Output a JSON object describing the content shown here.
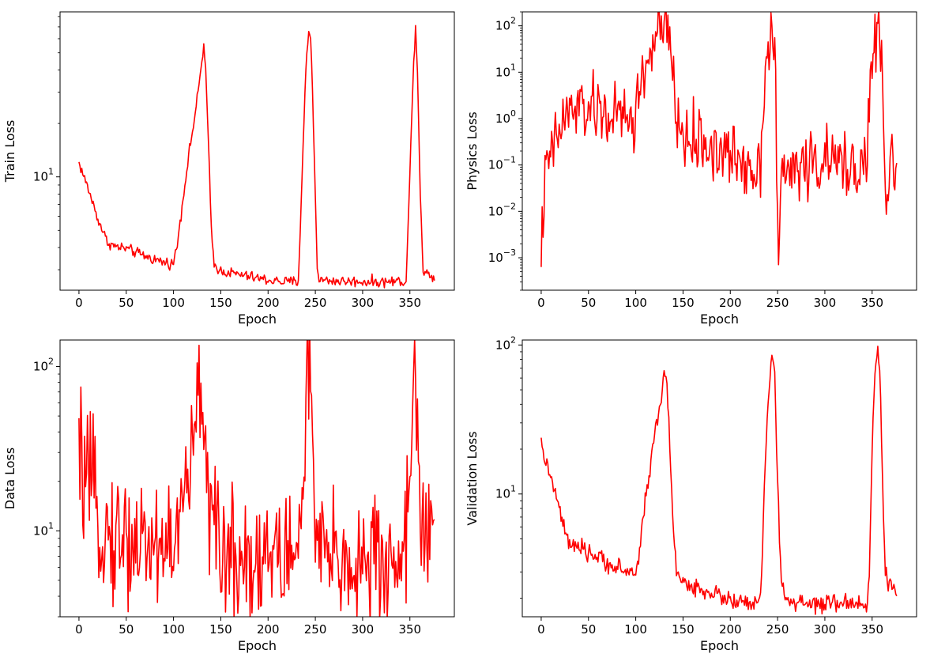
{
  "chart_data": [
    {
      "type": "line",
      "ylabel": "Train Loss",
      "xlabel": "Epoch",
      "yscale": "log",
      "xlim": [
        -20,
        397
      ],
      "ylim": [
        2.3,
        85
      ],
      "grid": false,
      "color": "#ff0000",
      "xticks": [
        0,
        50,
        100,
        150,
        200,
        250,
        300,
        350
      ],
      "yticks": [
        {
          "value": 10,
          "base": "10",
          "exp": "1"
        }
      ],
      "noise": 0.015,
      "keypoints": [
        [
          0,
          12
        ],
        [
          10,
          8.5
        ],
        [
          20,
          5.8
        ],
        [
          30,
          4.3
        ],
        [
          38,
          4.05
        ],
        [
          50,
          3.95
        ],
        [
          60,
          3.75
        ],
        [
          75,
          3.5
        ],
        [
          90,
          3.3
        ],
        [
          100,
          3.25
        ],
        [
          104,
          4.2
        ],
        [
          110,
          7.5
        ],
        [
          115,
          12
        ],
        [
          120,
          18
        ],
        [
          125,
          27
        ],
        [
          130,
          45
        ],
        [
          132,
          55
        ],
        [
          134,
          40
        ],
        [
          137,
          15
        ],
        [
          140,
          5
        ],
        [
          143,
          3.2
        ],
        [
          150,
          2.95
        ],
        [
          175,
          2.78
        ],
        [
          200,
          2.62
        ],
        [
          220,
          2.56
        ],
        [
          232,
          2.58
        ],
        [
          234,
          5
        ],
        [
          237,
          15
        ],
        [
          240,
          40
        ],
        [
          243,
          66
        ],
        [
          245,
          63
        ],
        [
          247,
          30
        ],
        [
          250,
          8
        ],
        [
          252,
          3
        ],
        [
          255,
          2.62
        ],
        [
          280,
          2.58
        ],
        [
          320,
          2.56
        ],
        [
          346,
          2.6
        ],
        [
          348,
          5
        ],
        [
          351,
          15
        ],
        [
          354,
          45
        ],
        [
          356,
          72
        ],
        [
          358,
          40
        ],
        [
          361,
          8
        ],
        [
          364,
          3
        ],
        [
          370,
          2.8
        ],
        [
          376,
          2.7
        ]
      ]
    },
    {
      "type": "line",
      "ylabel": "Physics Loss",
      "xlabel": "Epoch",
      "yscale": "log",
      "xlim": [
        -20,
        397
      ],
      "ylim": [
        0.0002,
        200
      ],
      "grid": false,
      "color": "#ff0000",
      "xticks": [
        0,
        50,
        100,
        150,
        200,
        250,
        300,
        350
      ],
      "yticks": [
        {
          "value": 0.001,
          "base": "10",
          "exp": "−3"
        },
        {
          "value": 0.01,
          "base": "10",
          "exp": "−2"
        },
        {
          "value": 0.1,
          "base": "10",
          "exp": "−1"
        },
        {
          "value": 1,
          "base": "10",
          "exp": "0"
        },
        {
          "value": 10,
          "base": "10",
          "exp": "1"
        },
        {
          "value": 100,
          "base": "10",
          "exp": "2"
        }
      ],
      "noise": 0.35,
      "keypoints": [
        [
          0,
          0.0016
        ],
        [
          2,
          0.01
        ],
        [
          5,
          0.06
        ],
        [
          8,
          0.12
        ],
        [
          12,
          0.2
        ],
        [
          16,
          0.35
        ],
        [
          20,
          0.6
        ],
        [
          25,
          1.0
        ],
        [
          30,
          1.4
        ],
        [
          40,
          1.6
        ],
        [
          50,
          1.6
        ],
        [
          60,
          1.4
        ],
        [
          70,
          1.2
        ],
        [
          80,
          1.1
        ],
        [
          90,
          1.0
        ],
        [
          98,
          0.8
        ],
        [
          100,
          1.5
        ],
        [
          105,
          5
        ],
        [
          110,
          12
        ],
        [
          115,
          25
        ],
        [
          120,
          50
        ],
        [
          125,
          75
        ],
        [
          130,
          90
        ],
        [
          135,
          40
        ],
        [
          140,
          8
        ],
        [
          143,
          1.0
        ],
        [
          147,
          0.5
        ],
        [
          155,
          0.35
        ],
        [
          170,
          0.3
        ],
        [
          185,
          0.2
        ],
        [
          200,
          0.15
        ],
        [
          215,
          0.12
        ],
        [
          228,
          0.08
        ],
        [
          232,
          0.1
        ],
        [
          234,
          2
        ],
        [
          237,
          10
        ],
        [
          240,
          40
        ],
        [
          243,
          80
        ],
        [
          246,
          50
        ],
        [
          248,
          5
        ],
        [
          249,
          0.1
        ],
        [
          250,
          0.01
        ],
        [
          251,
          0.00025
        ],
        [
          252,
          0.005
        ],
        [
          254,
          0.04
        ],
        [
          260,
          0.08
        ],
        [
          280,
          0.1
        ],
        [
          300,
          0.12
        ],
        [
          320,
          0.1
        ],
        [
          340,
          0.1
        ],
        [
          345,
          0.15
        ],
        [
          347,
          2
        ],
        [
          350,
          20
        ],
        [
          354,
          50
        ],
        [
          357,
          60
        ],
        [
          360,
          20
        ],
        [
          362,
          1
        ],
        [
          364,
          0.02
        ],
        [
          365,
          0.005
        ],
        [
          368,
          0.05
        ],
        [
          370,
          0.2
        ],
        [
          373,
          0.1
        ],
        [
          376,
          0.12
        ]
      ]
    },
    {
      "type": "line",
      "ylabel": "Data Loss",
      "xlabel": "Epoch",
      "yscale": "log",
      "xlim": [
        -20,
        397
      ],
      "ylim": [
        3.0,
        145
      ],
      "grid": false,
      "color": "#ff0000",
      "xticks": [
        0,
        50,
        100,
        150,
        200,
        250,
        300,
        350
      ],
      "yticks": [
        {
          "value": 10,
          "base": "10",
          "exp": "1"
        },
        {
          "value": 100,
          "base": "10",
          "exp": "2"
        }
      ],
      "noise": 0.2,
      "keypoints": [
        [
          0,
          26
        ],
        [
          5,
          22
        ],
        [
          10,
          18
        ],
        [
          20,
          13
        ],
        [
          30,
          9.5
        ],
        [
          50,
          8.8
        ],
        [
          70,
          8.5
        ],
        [
          90,
          8.3
        ],
        [
          105,
          9
        ],
        [
          110,
          15
        ],
        [
          115,
          22
        ],
        [
          120,
          28
        ],
        [
          125,
          50
        ],
        [
          128,
          70
        ],
        [
          130,
          70
        ],
        [
          132,
          55
        ],
        [
          135,
          30
        ],
        [
          138,
          15
        ],
        [
          142,
          9
        ],
        [
          150,
          7.5
        ],
        [
          175,
          7
        ],
        [
          200,
          7
        ],
        [
          220,
          7
        ],
        [
          232,
          7.5
        ],
        [
          235,
          15
        ],
        [
          238,
          30
        ],
        [
          241,
          80
        ],
        [
          243,
          110
        ],
        [
          246,
          50
        ],
        [
          249,
          12
        ],
        [
          253,
          7
        ],
        [
          270,
          6.5
        ],
        [
          300,
          6.5
        ],
        [
          330,
          6.3
        ],
        [
          346,
          8
        ],
        [
          349,
          25
        ],
        [
          352,
          50
        ],
        [
          355,
          110
        ],
        [
          358,
          45
        ],
        [
          361,
          12
        ],
        [
          364,
          8.5
        ],
        [
          370,
          9
        ],
        [
          376,
          8
        ]
      ]
    },
    {
      "type": "line",
      "ylabel": "Validation Loss",
      "xlabel": "Epoch",
      "yscale": "log",
      "xlim": [
        -20,
        397
      ],
      "ylim": [
        1.5,
        108
      ],
      "grid": false,
      "color": "#ff0000",
      "xticks": [
        0,
        50,
        100,
        150,
        200,
        250,
        300,
        350
      ],
      "yticks": [
        {
          "value": 10,
          "base": "10",
          "exp": "1"
        },
        {
          "value": 100,
          "base": "10",
          "exp": "2"
        }
      ],
      "noise": 0.03,
      "keypoints": [
        [
          0,
          21
        ],
        [
          10,
          13
        ],
        [
          20,
          7.5
        ],
        [
          28,
          4.8
        ],
        [
          35,
          4.35
        ],
        [
          50,
          4.05
        ],
        [
          65,
          3.6
        ],
        [
          80,
          3.2
        ],
        [
          95,
          2.95
        ],
        [
          100,
          2.9
        ],
        [
          104,
          4.2
        ],
        [
          110,
          9
        ],
        [
          115,
          15
        ],
        [
          120,
          25
        ],
        [
          125,
          38
        ],
        [
          130,
          60
        ],
        [
          132,
          62
        ],
        [
          134,
          40
        ],
        [
          137,
          15
        ],
        [
          140,
          6
        ],
        [
          143,
          3
        ],
        [
          150,
          2.5
        ],
        [
          170,
          2.3
        ],
        [
          190,
          2.05
        ],
        [
          210,
          1.85
        ],
        [
          230,
          1.8
        ],
        [
          233,
          2.5
        ],
        [
          236,
          12
        ],
        [
          240,
          40
        ],
        [
          243,
          80
        ],
        [
          245,
          85
        ],
        [
          247,
          60
        ],
        [
          249,
          20
        ],
        [
          252,
          5
        ],
        [
          255,
          2.2
        ],
        [
          260,
          1.95
        ],
        [
          280,
          1.8
        ],
        [
          300,
          1.8
        ],
        [
          320,
          1.85
        ],
        [
          345,
          1.85
        ],
        [
          347,
          3
        ],
        [
          350,
          20
        ],
        [
          353,
          65
        ],
        [
          356,
          90
        ],
        [
          358,
          70
        ],
        [
          360,
          25
        ],
        [
          362,
          6
        ],
        [
          364,
          3
        ],
        [
          368,
          2.6
        ],
        [
          372,
          2.3
        ],
        [
          376,
          2.1
        ]
      ]
    }
  ]
}
